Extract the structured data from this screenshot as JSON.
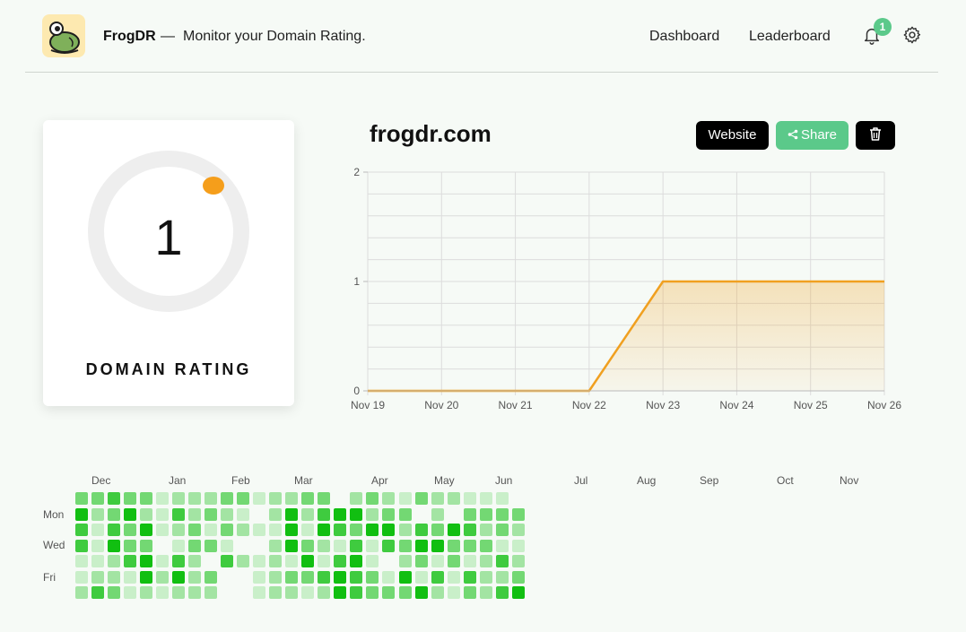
{
  "header": {
    "brand": "FrogDR",
    "dash": "—",
    "tagline": "Monitor your Domain Rating.",
    "nav": [
      "Dashboard",
      "Leaderboard"
    ],
    "notifications": "1"
  },
  "rating": {
    "value": "1",
    "label": "DOMAIN RATING",
    "max": 100,
    "colors": {
      "ring": "#eeeeee",
      "knob": "#f59e1b"
    }
  },
  "site": {
    "name": "frogdr.com",
    "buttons": {
      "website": "Website",
      "share": "Share"
    }
  },
  "chart_data": {
    "type": "area",
    "x": [
      "Nov 19",
      "Nov 20",
      "Nov 21",
      "Nov 22",
      "Nov 23",
      "Nov 24",
      "Nov 25",
      "Nov 26"
    ],
    "values": [
      0,
      0,
      0,
      0,
      1,
      1,
      1,
      1
    ],
    "ylim": [
      0,
      2
    ],
    "yticks": [
      "0",
      "1",
      "2"
    ],
    "grid": true,
    "color": "#f0a020"
  },
  "heatmap": {
    "months": [
      "Dec",
      "Jan",
      "Feb",
      "Mar",
      "Apr",
      "May",
      "Jun",
      "Jul",
      "Aug",
      "Sep",
      "Oct",
      "Nov"
    ],
    "days": [
      "Mon",
      "Wed",
      "Fri"
    ],
    "levels": [
      "3343312223312233023213221110",
      "5235214232102524552330203333",
      "4143512313211515435524354232",
      "4153301331002532141435533311",
      "1124514204212151451023131242",
      "1221525230012334543151414223",
      "2431212220012212543335213245"
    ],
    "colors": [
      "#e8f7e8",
      "#c9efc9",
      "#a3e4a3",
      "#73d873",
      "#3fcb3f",
      "#11bf11"
    ]
  }
}
